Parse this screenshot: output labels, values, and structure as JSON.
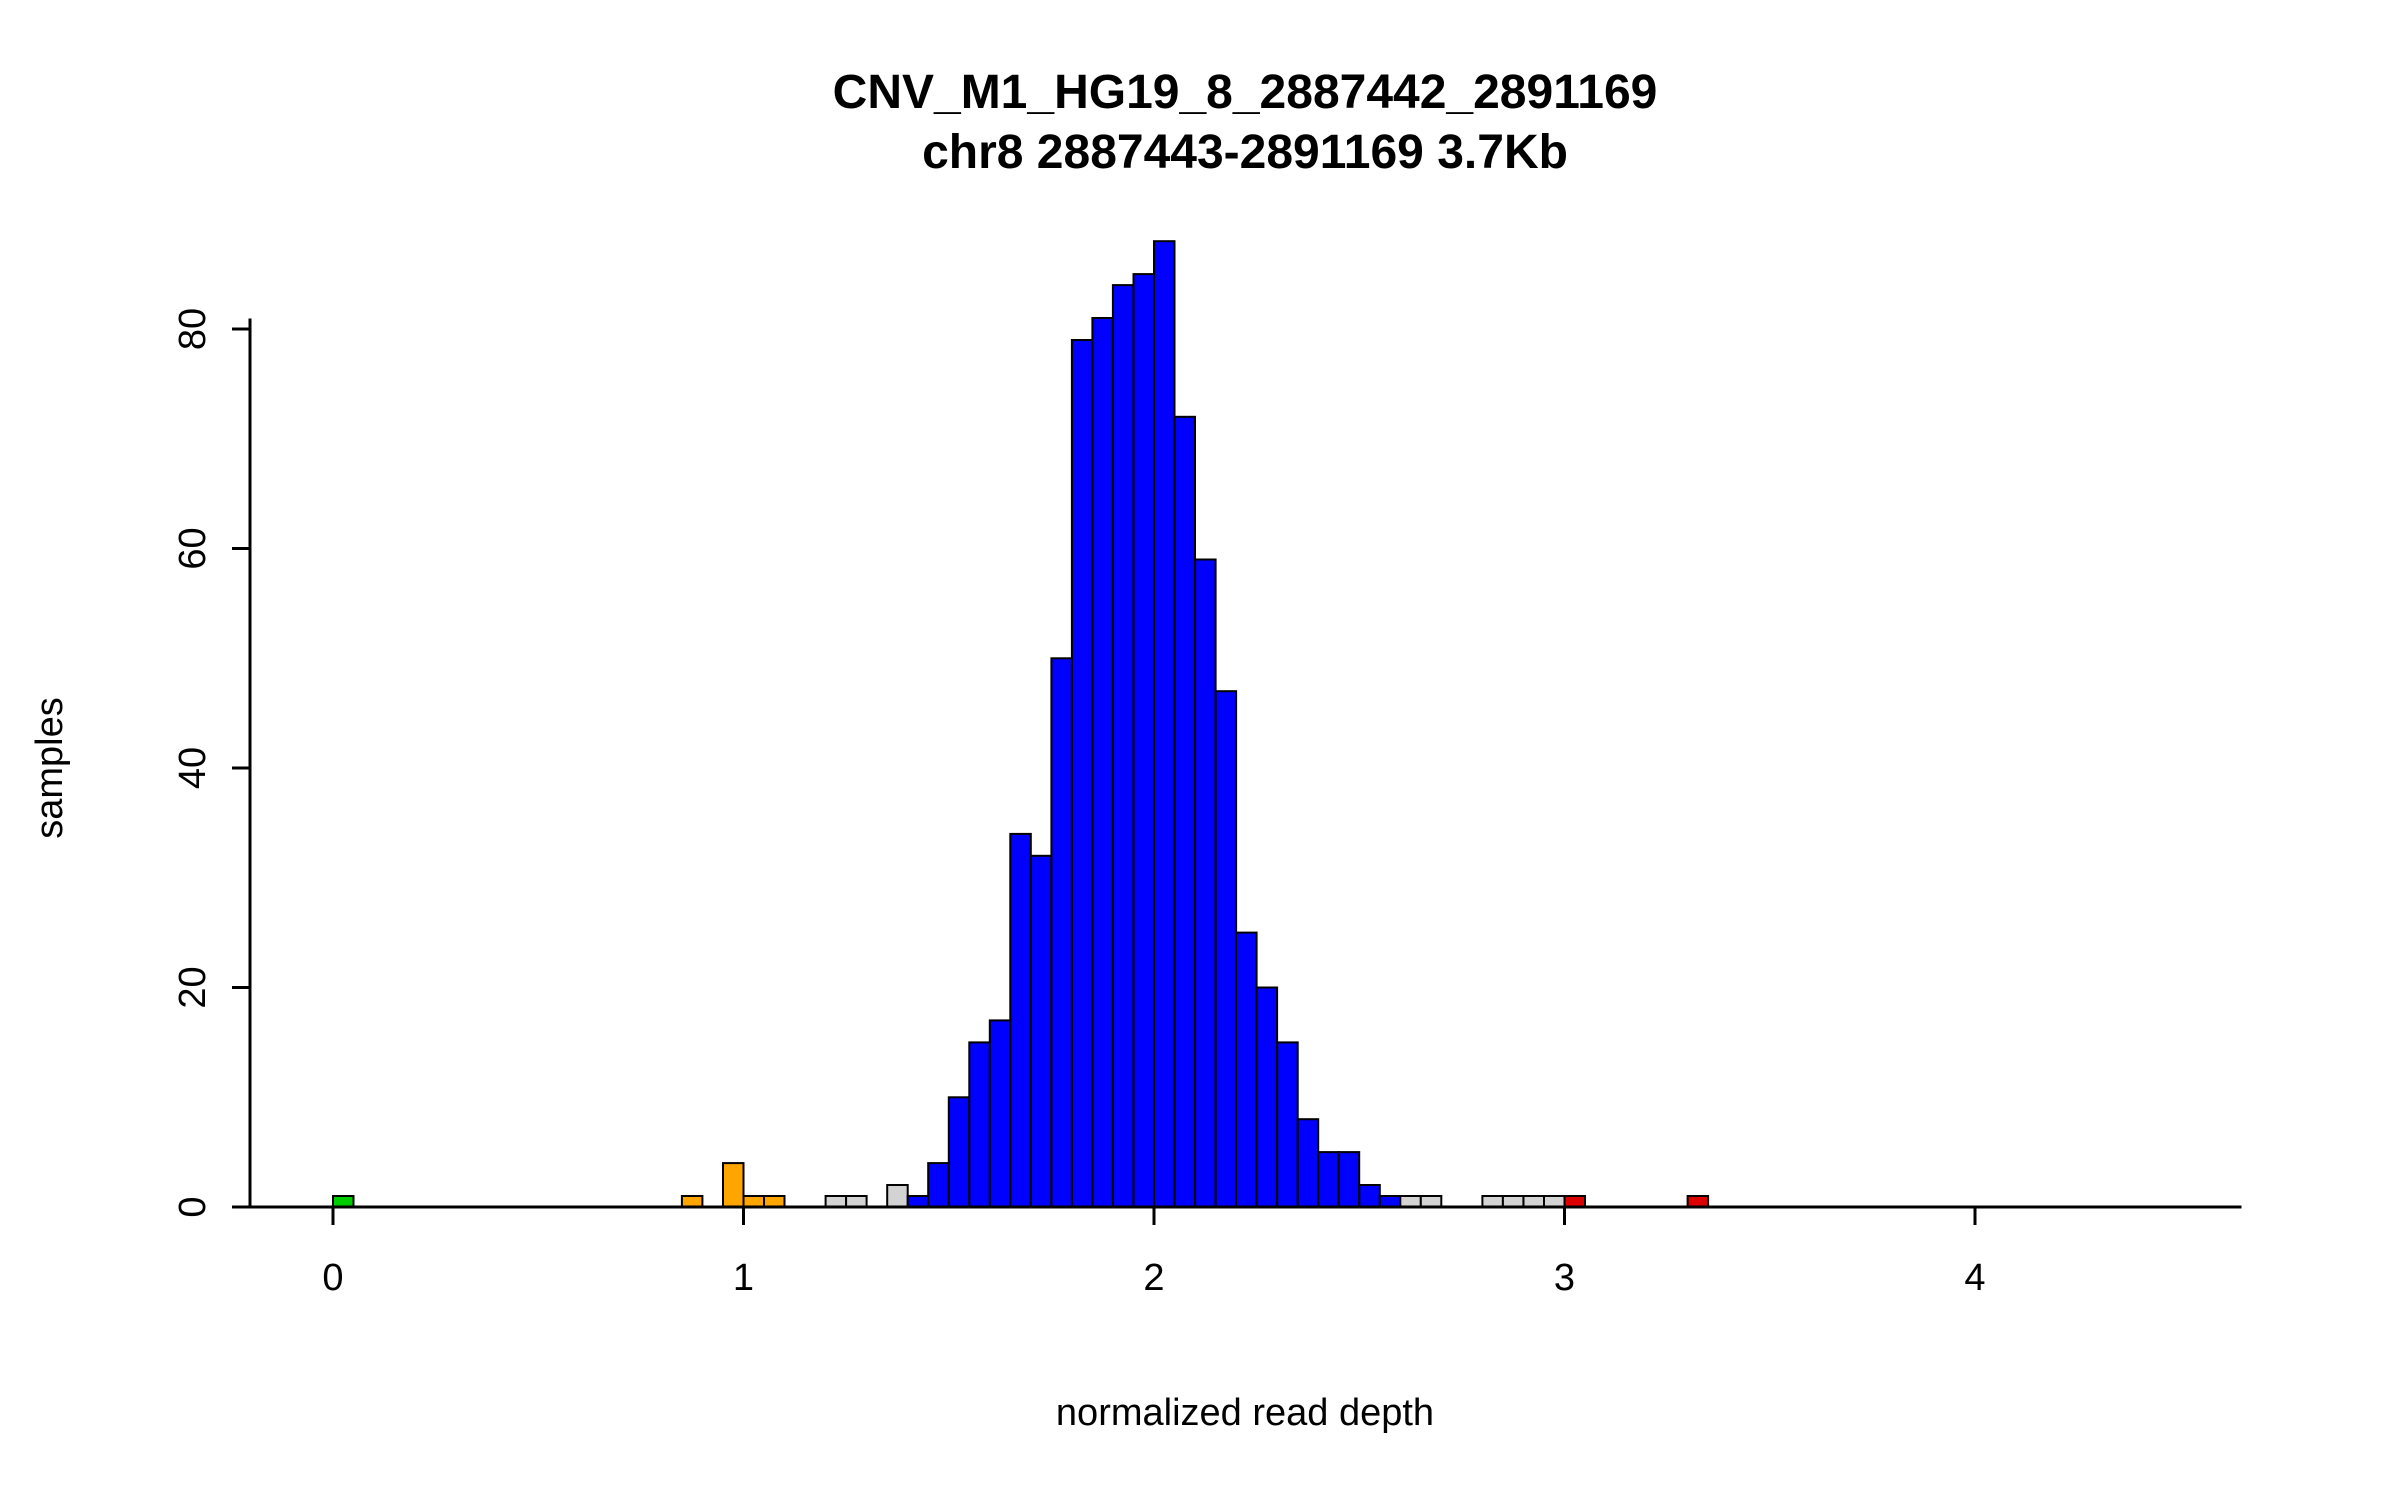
{
  "chart_data": {
    "type": "bar",
    "subtype": "histogram",
    "title": "CNV_M1_HG19_8_2887442_2891169",
    "subtitle": "chr8 2887443-2891169 3.7Kb",
    "xlabel": "normalized read depth",
    "ylabel": "samples",
    "x_axis": {
      "ticks": [
        0,
        1,
        2,
        3,
        4
      ],
      "range": [
        -0.2,
        4.65
      ]
    },
    "y_axis": {
      "ticks": [
        0,
        20,
        40,
        60,
        80
      ],
      "range": [
        0,
        88
      ]
    },
    "bin_width": 0.05,
    "legend": "none",
    "grid": false,
    "colors": {
      "green": "#00cd00",
      "orange": "#ffa500",
      "gray": "#d3d3d3",
      "blue": "#0000ff",
      "red": "#dd0000"
    },
    "bins": [
      {
        "x": 0.0,
        "count": 1,
        "color": "green"
      },
      {
        "x": 0.85,
        "count": 1,
        "color": "orange"
      },
      {
        "x": 0.95,
        "count": 4,
        "color": "orange"
      },
      {
        "x": 1.0,
        "count": 1,
        "color": "orange"
      },
      {
        "x": 1.05,
        "count": 1,
        "color": "orange"
      },
      {
        "x": 1.2,
        "count": 1,
        "color": "gray"
      },
      {
        "x": 1.25,
        "count": 1,
        "color": "gray"
      },
      {
        "x": 1.35,
        "count": 2,
        "color": "gray"
      },
      {
        "x": 1.4,
        "count": 1,
        "color": "blue"
      },
      {
        "x": 1.45,
        "count": 4,
        "color": "blue"
      },
      {
        "x": 1.5,
        "count": 10,
        "color": "blue"
      },
      {
        "x": 1.55,
        "count": 15,
        "color": "blue"
      },
      {
        "x": 1.6,
        "count": 17,
        "color": "blue"
      },
      {
        "x": 1.65,
        "count": 34,
        "color": "blue"
      },
      {
        "x": 1.7,
        "count": 32,
        "color": "blue"
      },
      {
        "x": 1.75,
        "count": 50,
        "color": "blue"
      },
      {
        "x": 1.8,
        "count": 79,
        "color": "blue"
      },
      {
        "x": 1.85,
        "count": 81,
        "color": "blue"
      },
      {
        "x": 1.9,
        "count": 84,
        "color": "blue"
      },
      {
        "x": 1.95,
        "count": 85,
        "color": "blue"
      },
      {
        "x": 2.0,
        "count": 88,
        "color": "blue"
      },
      {
        "x": 2.05,
        "count": 72,
        "color": "blue"
      },
      {
        "x": 2.1,
        "count": 59,
        "color": "blue"
      },
      {
        "x": 2.15,
        "count": 47,
        "color": "blue"
      },
      {
        "x": 2.2,
        "count": 25,
        "color": "blue"
      },
      {
        "x": 2.25,
        "count": 20,
        "color": "blue"
      },
      {
        "x": 2.3,
        "count": 15,
        "color": "blue"
      },
      {
        "x": 2.35,
        "count": 8,
        "color": "blue"
      },
      {
        "x": 2.4,
        "count": 5,
        "color": "blue"
      },
      {
        "x": 2.45,
        "count": 5,
        "color": "blue"
      },
      {
        "x": 2.5,
        "count": 2,
        "color": "blue"
      },
      {
        "x": 2.55,
        "count": 1,
        "color": "blue"
      },
      {
        "x": 2.6,
        "count": 1,
        "color": "gray"
      },
      {
        "x": 2.65,
        "count": 1,
        "color": "gray"
      },
      {
        "x": 2.8,
        "count": 1,
        "color": "gray"
      },
      {
        "x": 2.85,
        "count": 1,
        "color": "gray"
      },
      {
        "x": 2.9,
        "count": 1,
        "color": "gray"
      },
      {
        "x": 2.95,
        "count": 1,
        "color": "gray"
      },
      {
        "x": 3.0,
        "count": 1,
        "color": "red"
      },
      {
        "x": 3.3,
        "count": 1,
        "color": "red"
      }
    ]
  }
}
